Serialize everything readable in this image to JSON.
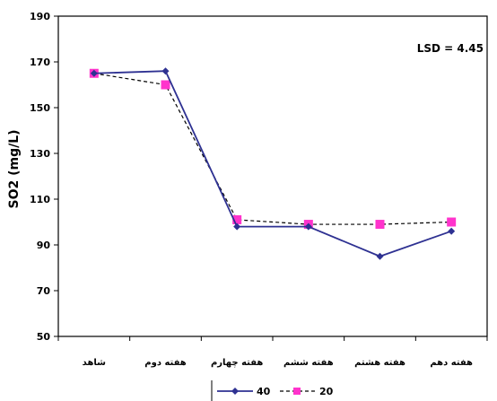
{
  "chart_data": {
    "type": "line",
    "categories": [
      "شاهد",
      "هفته دوم",
      "هفته چهارم",
      "هفته ششم",
      "هفته هشتم",
      "هفته دهم"
    ],
    "series": [
      {
        "name": "40",
        "values": [
          165,
          166,
          98,
          98,
          85,
          96
        ],
        "color": "#2e3192",
        "marker": "diamond",
        "dash": "solid"
      },
      {
        "name": "20",
        "values": [
          165,
          160,
          101,
          99,
          99,
          100
        ],
        "color": "#ff33cc",
        "marker": "square",
        "dash": "dashed",
        "line_color": "#000000"
      }
    ],
    "ylabel": "SO2 (mg/L)",
    "ylim": [
      50,
      190
    ],
    "yticks": [
      50,
      70,
      90,
      110,
      130,
      150,
      170,
      190
    ],
    "grid": false,
    "legend": "bottom",
    "annotation": "LSD = 4.45"
  }
}
